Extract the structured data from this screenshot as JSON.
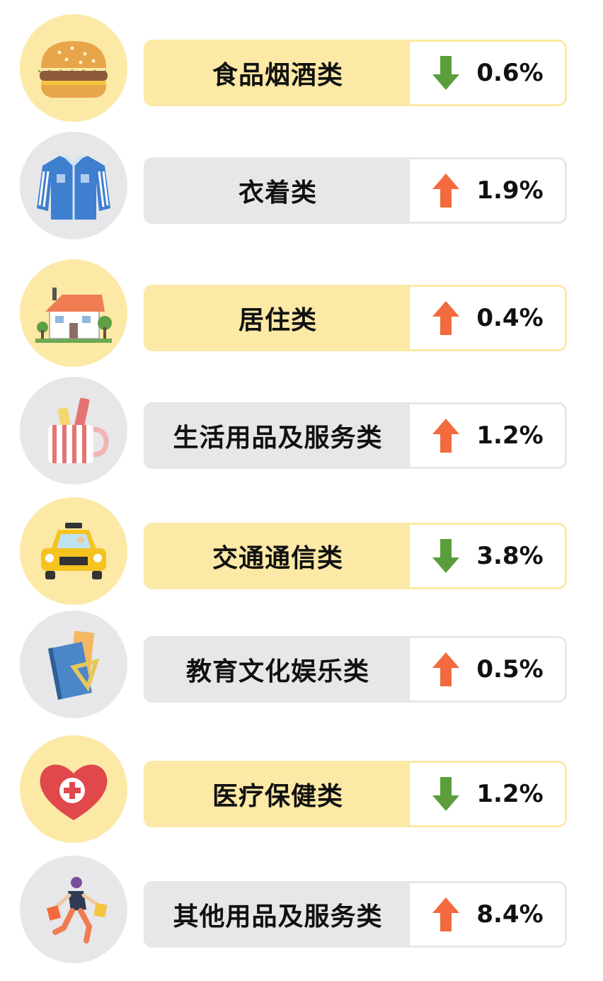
{
  "colors": {
    "yellow": "#fce9a6",
    "gray": "#e7e7e9",
    "down": "#5a9e3c",
    "up": "#f26a3d"
  },
  "items": [
    {
      "label": "食品烟酒类",
      "value": "0.6%",
      "direction": "down",
      "theme": "yellow",
      "icon": "burger-icon"
    },
    {
      "label": "衣着类",
      "value": "1.9%",
      "direction": "up",
      "theme": "gray",
      "icon": "jacket-icon"
    },
    {
      "label": "居住类",
      "value": "0.4%",
      "direction": "up",
      "theme": "yellow",
      "icon": "house-icon"
    },
    {
      "label": "生活用品及服务类",
      "value": "1.2%",
      "direction": "up",
      "theme": "gray",
      "icon": "mug-icon"
    },
    {
      "label": "交通通信类",
      "value": "3.8%",
      "direction": "down",
      "theme": "yellow",
      "icon": "taxi-icon"
    },
    {
      "label": "教育文化娱乐类",
      "value": "0.5%",
      "direction": "up",
      "theme": "gray",
      "icon": "books-icon"
    },
    {
      "label": "医疗保健类",
      "value": "1.2%",
      "direction": "down",
      "theme": "yellow",
      "icon": "heart-cross-icon"
    },
    {
      "label": "其他用品及服务类",
      "value": "8.4%",
      "direction": "up",
      "theme": "gray",
      "icon": "shopper-icon"
    }
  ]
}
